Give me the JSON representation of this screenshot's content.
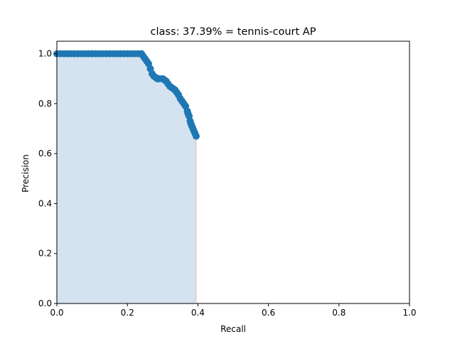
{
  "chart_data": {
    "type": "area",
    "title": "class: 37.39% = tennis-court AP",
    "xlabel": "Recall",
    "ylabel": "Precision",
    "xlim": [
      0.0,
      1.0
    ],
    "ylim": [
      0.0,
      1.05
    ],
    "xticks": [
      "0.0",
      "0.2",
      "0.4",
      "0.6",
      "0.8",
      "1.0"
    ],
    "yticks": [
      "0.0",
      "0.2",
      "0.4",
      "0.6",
      "0.8",
      "1.0"
    ],
    "grid": false,
    "legend": "none",
    "series": [
      {
        "x": [
          0.0,
          0.01,
          0.02,
          0.03,
          0.04,
          0.05,
          0.06,
          0.07,
          0.08,
          0.09,
          0.1,
          0.11,
          0.12,
          0.13,
          0.14,
          0.15,
          0.16,
          0.17,
          0.18,
          0.19,
          0.2,
          0.21,
          0.22,
          0.23,
          0.24,
          0.245,
          0.25,
          0.255,
          0.26,
          0.265,
          0.27,
          0.275,
          0.28,
          0.285,
          0.29,
          0.3,
          0.305,
          0.31,
          0.315,
          0.32,
          0.325,
          0.33,
          0.335,
          0.34,
          0.345,
          0.35,
          0.355,
          0.36,
          0.365,
          0.37,
          0.372,
          0.375,
          0.378,
          0.38,
          0.383,
          0.386,
          0.389,
          0.392,
          0.395
        ],
        "y": [
          1.0,
          1.0,
          1.0,
          1.0,
          1.0,
          1.0,
          1.0,
          1.0,
          1.0,
          1.0,
          1.0,
          1.0,
          1.0,
          1.0,
          1.0,
          1.0,
          1.0,
          1.0,
          1.0,
          1.0,
          1.0,
          1.0,
          1.0,
          1.0,
          1.0,
          0.99,
          0.98,
          0.97,
          0.96,
          0.94,
          0.92,
          0.91,
          0.905,
          0.9,
          0.9,
          0.9,
          0.895,
          0.89,
          0.88,
          0.87,
          0.865,
          0.86,
          0.855,
          0.845,
          0.835,
          0.82,
          0.81,
          0.8,
          0.79,
          0.77,
          0.76,
          0.75,
          0.73,
          0.72,
          0.71,
          0.7,
          0.69,
          0.68,
          0.67
        ],
        "color": "#1f77b4",
        "fill_color": "#d4e3ef",
        "fill_edge_color": "#f0b8b8"
      }
    ]
  }
}
